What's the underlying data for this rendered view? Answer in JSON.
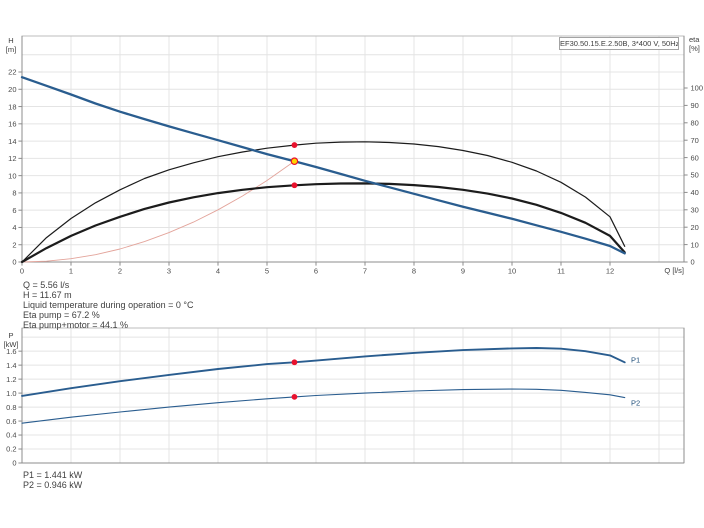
{
  "title_box": {
    "label": "EF30.50.15.E.2.50B, 3*400 V, 50Hz"
  },
  "axes": {
    "main": {
      "left_symbol": "H",
      "left_unit": "[m]",
      "right_symbol": "eta",
      "right_unit": "[%]",
      "x_label": "Q [l/s]"
    },
    "power": {
      "left_symbol": "P",
      "left_unit": "[kW]"
    }
  },
  "info_main": {
    "lines": [
      "Q = 5.56 l/s",
      "H = 11.67 m",
      "Liquid temperature during operation = 0 °C",
      "Eta pump = 67.2 %",
      "Eta pump+motor = 44.1 %"
    ]
  },
  "info_power": {
    "lines": [
      "P1 = 1.441 kW",
      "P2 = 0.946 kW"
    ]
  },
  "colors": {
    "curve_blue": "#2a5d8f",
    "curve_black": "#1c1c1c",
    "system_salmon": "#e3a49b",
    "dot_red": "#e8112d",
    "dot_yellow": "#ffd400",
    "label_blue": "#1f4e79",
    "grid": "#e4e4e4",
    "border": "#bcbcbc",
    "axis": "#8c8c8c",
    "tick_text": "#4a4a4a"
  },
  "chart_data": [
    {
      "type": "line",
      "title": "EF30.50.15.E.2.50B, 3*400 V, 50Hz",
      "xlabel": "Q [l/s]",
      "ylabel_left": "H [m]",
      "ylabel_right": "eta [%]",
      "xlim": [
        0,
        13.5
      ],
      "ylim_left": [
        0,
        26
      ],
      "ylim_right": [
        0,
        130
      ],
      "grid": true,
      "x_ticks": [
        [
          0,
          "0"
        ],
        [
          1,
          "1"
        ],
        [
          2,
          "2"
        ],
        [
          3,
          "3"
        ],
        [
          4,
          "4"
        ],
        [
          5,
          "5"
        ],
        [
          6,
          "6"
        ],
        [
          7,
          "7"
        ],
        [
          8,
          "8"
        ],
        [
          9,
          "9"
        ],
        [
          10,
          "10"
        ],
        [
          11,
          "11"
        ],
        [
          12,
          "12"
        ]
      ],
      "y_ticks_left": [
        [
          0,
          "0"
        ],
        [
          2,
          "2"
        ],
        [
          4,
          "4"
        ],
        [
          6,
          "6"
        ],
        [
          8,
          "8"
        ],
        [
          10,
          "10"
        ],
        [
          12,
          "12"
        ],
        [
          14,
          "14"
        ],
        [
          16,
          "16"
        ],
        [
          18,
          "18"
        ],
        [
          20,
          "20"
        ],
        [
          22,
          "22"
        ]
      ],
      "y_ticks_right": [
        [
          0,
          "0"
        ],
        [
          10,
          "10"
        ],
        [
          20,
          "20"
        ],
        [
          30,
          "30"
        ],
        [
          40,
          "40"
        ],
        [
          50,
          "50"
        ],
        [
          60,
          "60"
        ],
        [
          70,
          "70"
        ],
        [
          80,
          "80"
        ],
        [
          90,
          "90"
        ],
        [
          100,
          "100"
        ]
      ],
      "series": [
        {
          "name": "system-curve",
          "axis": "H",
          "color": "system_salmon",
          "width": 0.9,
          "points": [
            [
              0,
              0
            ],
            [
              0.5,
              0.09
            ],
            [
              1,
              0.38
            ],
            [
              1.5,
              0.85
            ],
            [
              2,
              1.51
            ],
            [
              2.5,
              2.36
            ],
            [
              3,
              3.4
            ],
            [
              3.5,
              4.62
            ],
            [
              4,
              6.04
            ],
            [
              4.5,
              7.64
            ],
            [
              5,
              9.44
            ],
            [
              5.56,
              11.67
            ]
          ]
        },
        {
          "name": "eta-pump",
          "axis": "eta",
          "color": "curve_black",
          "width": 1.2,
          "points": [
            [
              0,
              0
            ],
            [
              0.5,
              14
            ],
            [
              1,
              25
            ],
            [
              1.5,
              34
            ],
            [
              2,
              41.5
            ],
            [
              2.5,
              48
            ],
            [
              3,
              53
            ],
            [
              3.5,
              57
            ],
            [
              4,
              60.5
            ],
            [
              4.5,
              63.2
            ],
            [
              5,
              65.4
            ],
            [
              5.56,
              67.2
            ],
            [
              6,
              68.3
            ],
            [
              6.5,
              68.9
            ],
            [
              7,
              69.1
            ],
            [
              7.5,
              68.7
            ],
            [
              8,
              67.8
            ],
            [
              8.5,
              66.3
            ],
            [
              9,
              64.1
            ],
            [
              9.5,
              61.2
            ],
            [
              10,
              57.3
            ],
            [
              10.5,
              52.3
            ],
            [
              11,
              45.8
            ],
            [
              11.5,
              37.3
            ],
            [
              12,
              26
            ],
            [
              12.3,
              9
            ]
          ]
        },
        {
          "name": "eta-pump-motor",
          "axis": "eta",
          "color": "curve_black",
          "width": 2.2,
          "points": [
            [
              0,
              0
            ],
            [
              0.5,
              8
            ],
            [
              1,
              15
            ],
            [
              1.5,
              21
            ],
            [
              2,
              26
            ],
            [
              2.5,
              30.5
            ],
            [
              3,
              34.2
            ],
            [
              3.5,
              37.2
            ],
            [
              4,
              39.6
            ],
            [
              4.5,
              41.5
            ],
            [
              5,
              43
            ],
            [
              5.56,
              44.1
            ],
            [
              6,
              44.7
            ],
            [
              6.5,
              45.1
            ],
            [
              7,
              45.2
            ],
            [
              7.5,
              44.9
            ],
            [
              8,
              44.2
            ],
            [
              8.5,
              43.1
            ],
            [
              9,
              41.5
            ],
            [
              9.5,
              39.3
            ],
            [
              10,
              36.5
            ],
            [
              10.5,
              32.9
            ],
            [
              11,
              28.2
            ],
            [
              11.5,
              22.5
            ],
            [
              12,
              15
            ],
            [
              12.3,
              5.5
            ]
          ]
        },
        {
          "name": "H-Q-curve",
          "axis": "H",
          "color": "curve_blue",
          "width": 2.3,
          "points": [
            [
              0,
              21.4
            ],
            [
              0.5,
              20.4
            ],
            [
              1,
              19.4
            ],
            [
              1.5,
              18.35
            ],
            [
              2,
              17.4
            ],
            [
              2.5,
              16.55
            ],
            [
              3,
              15.7
            ],
            [
              3.5,
              14.9
            ],
            [
              4,
              14.1
            ],
            [
              4.5,
              13.3
            ],
            [
              5,
              12.5
            ],
            [
              5.56,
              11.67
            ],
            [
              6,
              11.0
            ],
            [
              6.5,
              10.2
            ],
            [
              7,
              9.4
            ],
            [
              7.5,
              8.65
            ],
            [
              8,
              7.9
            ],
            [
              8.5,
              7.15
            ],
            [
              9,
              6.4
            ],
            [
              9.5,
              5.7
            ],
            [
              10,
              5.0
            ],
            [
              10.5,
              4.25
            ],
            [
              11,
              3.5
            ],
            [
              11.5,
              2.7
            ],
            [
              12,
              1.85
            ],
            [
              12.3,
              1.0
            ]
          ]
        }
      ],
      "markers": [
        {
          "q": 5.56,
          "value": 67.2,
          "axis": "eta",
          "kind": "red"
        },
        {
          "q": 5.56,
          "value": 44.1,
          "axis": "eta",
          "kind": "red"
        },
        {
          "q": 5.56,
          "value": 11.67,
          "axis": "H",
          "kind": "yellow"
        }
      ],
      "duty_point": {
        "Q": 5.56,
        "H": 11.67,
        "eta_pump": 67.2,
        "eta_pump_motor": 44.1
      }
    },
    {
      "type": "line",
      "ylabel_left": "P [kW]",
      "xlim": [
        0,
        13.5
      ],
      "ylim_left": [
        0,
        1.95
      ],
      "grid": true,
      "y_ticks_left": [
        [
          0,
          "0"
        ],
        [
          0.2,
          "0.2"
        ],
        [
          0.4,
          "0.4"
        ],
        [
          0.6,
          "0.6"
        ],
        [
          0.8,
          "0.8"
        ],
        [
          1.0,
          "1.0"
        ],
        [
          1.2,
          "1.2"
        ],
        [
          1.4,
          "1.4"
        ],
        [
          1.6,
          "1.6"
        ]
      ],
      "series": [
        {
          "name": "P1",
          "label": "P1",
          "axis": "P",
          "color": "curve_blue",
          "width": 1.9,
          "points": [
            [
              0,
              0.96
            ],
            [
              1,
              1.07
            ],
            [
              2,
              1.17
            ],
            [
              3,
              1.26
            ],
            [
              4,
              1.345
            ],
            [
              5,
              1.415
            ],
            [
              5.56,
              1.441
            ],
            [
              6,
              1.465
            ],
            [
              7,
              1.525
            ],
            [
              8,
              1.575
            ],
            [
              9,
              1.615
            ],
            [
              10,
              1.64
            ],
            [
              10.5,
              1.645
            ],
            [
              11,
              1.635
            ],
            [
              11.5,
              1.6
            ],
            [
              12,
              1.54
            ],
            [
              12.3,
              1.44
            ]
          ]
        },
        {
          "name": "P2",
          "label": "P2",
          "axis": "P",
          "color": "curve_blue",
          "width": 1.1,
          "points": [
            [
              0,
              0.57
            ],
            [
              1,
              0.655
            ],
            [
              2,
              0.73
            ],
            [
              3,
              0.8
            ],
            [
              4,
              0.862
            ],
            [
              5,
              0.918
            ],
            [
              5.56,
              0.946
            ],
            [
              6,
              0.965
            ],
            [
              7,
              1.0
            ],
            [
              8,
              1.03
            ],
            [
              9,
              1.05
            ],
            [
              10,
              1.058
            ],
            [
              10.5,
              1.055
            ],
            [
              11,
              1.04
            ],
            [
              11.5,
              1.01
            ],
            [
              12,
              0.975
            ],
            [
              12.3,
              0.935
            ]
          ]
        }
      ],
      "markers": [
        {
          "q": 5.56,
          "value": 1.441,
          "axis": "P",
          "kind": "red"
        },
        {
          "q": 5.56,
          "value": 0.946,
          "axis": "P",
          "kind": "red"
        }
      ],
      "duty_point": {
        "P1": 1.441,
        "P2": 0.946
      }
    }
  ]
}
